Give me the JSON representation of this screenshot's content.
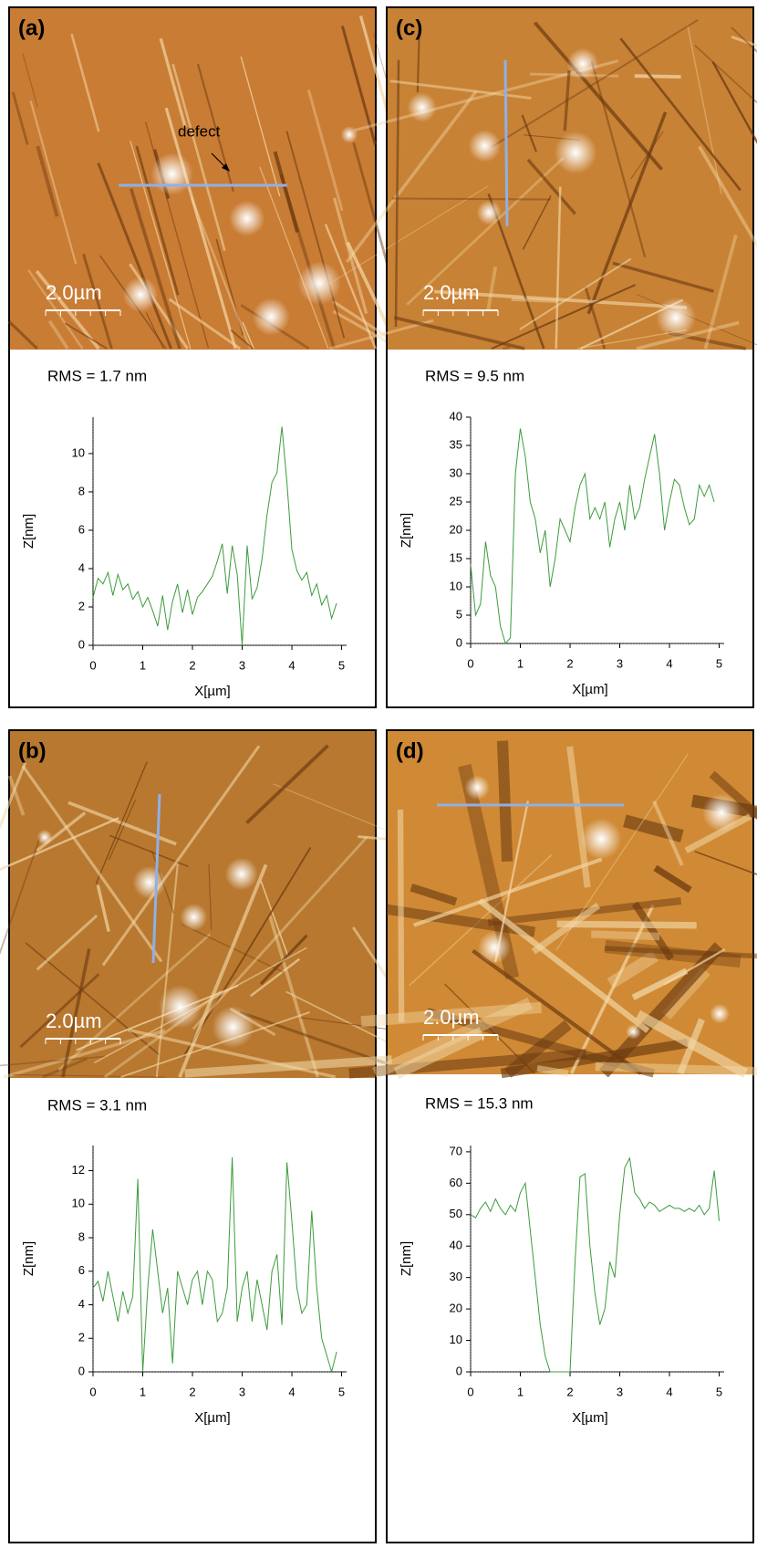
{
  "chart_data": [
    {
      "type": "line",
      "panel": "(a)",
      "annotation": "defect",
      "scale_bar": "2.0µm",
      "rms": "RMS = 1.7 nm",
      "xlabel": "X[µm]",
      "ylabel": "Z[nm]",
      "x": [
        0,
        0.1,
        0.2,
        0.3,
        0.4,
        0.5,
        0.6,
        0.7,
        0.8,
        0.9,
        1,
        1.1,
        1.2,
        1.3,
        1.4,
        1.5,
        1.6,
        1.7,
        1.8,
        1.9,
        2,
        2.1,
        2.2,
        2.3,
        2.4,
        2.5,
        2.6,
        2.7,
        2.8,
        2.9,
        3,
        3.1,
        3.2,
        3.3,
        3.4,
        3.5,
        3.6,
        3.7,
        3.8,
        3.9,
        4,
        4.1,
        4.2,
        4.3,
        4.4,
        4.5,
        4.6,
        4.7,
        4.8,
        4.9
      ],
      "series": [
        {
          "color": "#3d9b3d",
          "values": [
            2.5,
            3.5,
            3.2,
            3.8,
            2.6,
            3.7,
            2.9,
            3.2,
            2.4,
            2.8,
            2,
            2.5,
            1.8,
            1,
            2.6,
            0.8,
            2.3,
            3.2,
            1.7,
            2.9,
            1.6,
            2.5,
            2.8,
            3.2,
            3.6,
            4.4,
            5.3,
            2.7,
            5.2,
            3.7,
            0,
            5.2,
            2.4,
            3,
            4.5,
            6.8,
            8.5,
            9,
            11.4,
            8.5,
            5,
            3.9,
            3.4,
            3.8,
            2.6,
            3.2,
            2.1,
            2.6,
            1.4,
            2.2
          ]
        }
      ],
      "xlim": [
        0,
        5.1
      ],
      "ylim": [
        0,
        11.9
      ],
      "xticks": [
        0,
        1,
        2,
        3,
        4,
        5
      ],
      "yticks": [
        0,
        2,
        4,
        6,
        8,
        10
      ]
    },
    {
      "type": "line",
      "panel": "(b)",
      "scale_bar": "2.0µm",
      "rms": "RMS = 3.1 nm",
      "xlabel": "X[µm]",
      "ylabel": "Z[nm]",
      "x": [
        0,
        0.1,
        0.2,
        0.3,
        0.4,
        0.5,
        0.6,
        0.7,
        0.8,
        0.9,
        1,
        1.1,
        1.2,
        1.3,
        1.4,
        1.5,
        1.6,
        1.7,
        1.8,
        1.9,
        2,
        2.1,
        2.2,
        2.3,
        2.4,
        2.5,
        2.6,
        2.7,
        2.8,
        2.9,
        3,
        3.1,
        3.2,
        3.3,
        3.4,
        3.5,
        3.6,
        3.7,
        3.8,
        3.9,
        4,
        4.1,
        4.2,
        4.3,
        4.4,
        4.5,
        4.6,
        4.7,
        4.8,
        4.9
      ],
      "series": [
        {
          "color": "#3d9b3d",
          "values": [
            5,
            5.4,
            4.2,
            6,
            4.5,
            3,
            4.8,
            3.5,
            4.5,
            11.5,
            0,
            5,
            8.5,
            6,
            3.5,
            5,
            0.5,
            6,
            5,
            4,
            5.5,
            6,
            4,
            6,
            5.5,
            3,
            3.5,
            5,
            12.8,
            3,
            5,
            6,
            3,
            5.5,
            4,
            2.5,
            6,
            7,
            2.8,
            12.5,
            9,
            5,
            3.5,
            4,
            9.6,
            5,
            2,
            1,
            0,
            1.2
          ]
        }
      ],
      "xlim": [
        0,
        5.1
      ],
      "ylim": [
        0,
        13.5
      ],
      "xticks": [
        0,
        1,
        2,
        3,
        4,
        5
      ],
      "yticks": [
        0,
        2,
        4,
        6,
        8,
        10,
        12
      ]
    },
    {
      "type": "line",
      "panel": "(c)",
      "scale_bar": "2.0µm",
      "rms": "RMS = 9.5 nm",
      "xlabel": "X[µm]",
      "ylabel": "Z[nm]",
      "x": [
        0,
        0.1,
        0.2,
        0.3,
        0.4,
        0.5,
        0.6,
        0.7,
        0.8,
        0.9,
        1,
        1.1,
        1.2,
        1.3,
        1.4,
        1.5,
        1.6,
        1.7,
        1.8,
        1.9,
        2,
        2.1,
        2.2,
        2.3,
        2.4,
        2.5,
        2.6,
        2.7,
        2.8,
        2.9,
        3,
        3.1,
        3.2,
        3.3,
        3.4,
        3.5,
        3.6,
        3.7,
        3.8,
        3.9,
        4,
        4.1,
        4.2,
        4.3,
        4.4,
        4.5,
        4.6,
        4.7,
        4.8,
        4.9
      ],
      "series": [
        {
          "color": "#3d9b3d",
          "values": [
            14,
            5,
            7,
            18,
            12,
            10,
            3,
            0,
            1,
            30,
            38,
            33,
            25,
            22,
            16,
            20,
            10,
            15,
            22,
            20,
            18,
            24,
            28,
            30,
            22,
            24,
            22,
            25,
            17,
            22,
            25,
            20,
            28,
            22,
            24,
            29,
            33,
            37,
            30,
            20,
            25,
            29,
            28,
            24,
            21,
            22,
            28,
            26,
            28,
            25
          ]
        }
      ],
      "xlim": [
        0,
        5.1
      ],
      "ylim": [
        0,
        40
      ],
      "xticks": [
        0,
        1,
        2,
        3,
        4,
        5
      ],
      "yticks": [
        0,
        5,
        10,
        15,
        20,
        25,
        30,
        35,
        40
      ]
    },
    {
      "type": "line",
      "panel": "(d)",
      "scale_bar": "2.0µm",
      "rms": "RMS = 15.3 nm",
      "xlabel": "X[µm]",
      "ylabel": "Z[nm]",
      "x": [
        0,
        0.1,
        0.2,
        0.3,
        0.4,
        0.5,
        0.6,
        0.7,
        0.8,
        0.9,
        1,
        1.1,
        1.2,
        1.3,
        1.4,
        1.5,
        1.6,
        1.7,
        1.8,
        1.9,
        2,
        2.1,
        2.2,
        2.3,
        2.4,
        2.5,
        2.6,
        2.7,
        2.8,
        2.9,
        3,
        3.1,
        3.2,
        3.3,
        3.4,
        3.5,
        3.6,
        3.7,
        3.8,
        3.9,
        4,
        4.1,
        4.2,
        4.3,
        4.4,
        4.5,
        4.6,
        4.7,
        4.8,
        4.9,
        5
      ],
      "series": [
        {
          "color": "#3d9b3d",
          "values": [
            50,
            49,
            52,
            54,
            51,
            55,
            52,
            50,
            53,
            51,
            57,
            60,
            45,
            30,
            15,
            5,
            0,
            0,
            0,
            0,
            0,
            35,
            62,
            63,
            40,
            25,
            15,
            20,
            35,
            30,
            50,
            65,
            68,
            57,
            55,
            52,
            54,
            53,
            51,
            52,
            53,
            52,
            52,
            51,
            52,
            51,
            53,
            50,
            52,
            64,
            48
          ]
        }
      ],
      "xlim": [
        0,
        5.1
      ],
      "ylim": [
        0,
        72
      ],
      "xticks": [
        0,
        1,
        2,
        3,
        4,
        5
      ],
      "yticks": [
        0,
        10,
        20,
        30,
        40,
        50,
        60,
        70
      ]
    }
  ]
}
